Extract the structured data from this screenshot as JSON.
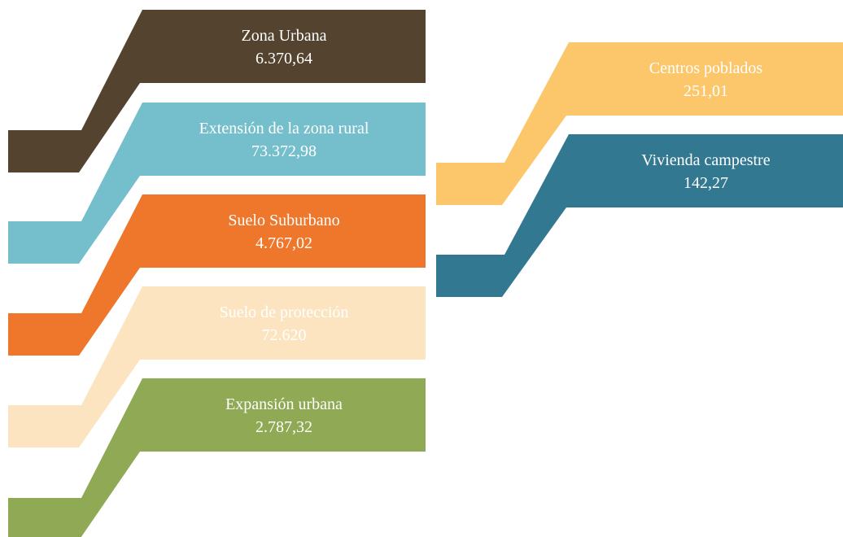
{
  "items": [
    {
      "label": "Zona Urbana",
      "value": "6.370,64"
    },
    {
      "label": "Extensión de la zona rural",
      "value": "73.372,98"
    },
    {
      "label": "Suelo Suburbano",
      "value": "4.767,02"
    },
    {
      "label": "Suelo de protección",
      "value": "72.620"
    },
    {
      "label": "Expansión urbana",
      "value": "2.787,32"
    },
    {
      "label": "Centros poblados",
      "value": "251,01"
    },
    {
      "label": "Vivienda campestre",
      "value": "142,27"
    }
  ]
}
